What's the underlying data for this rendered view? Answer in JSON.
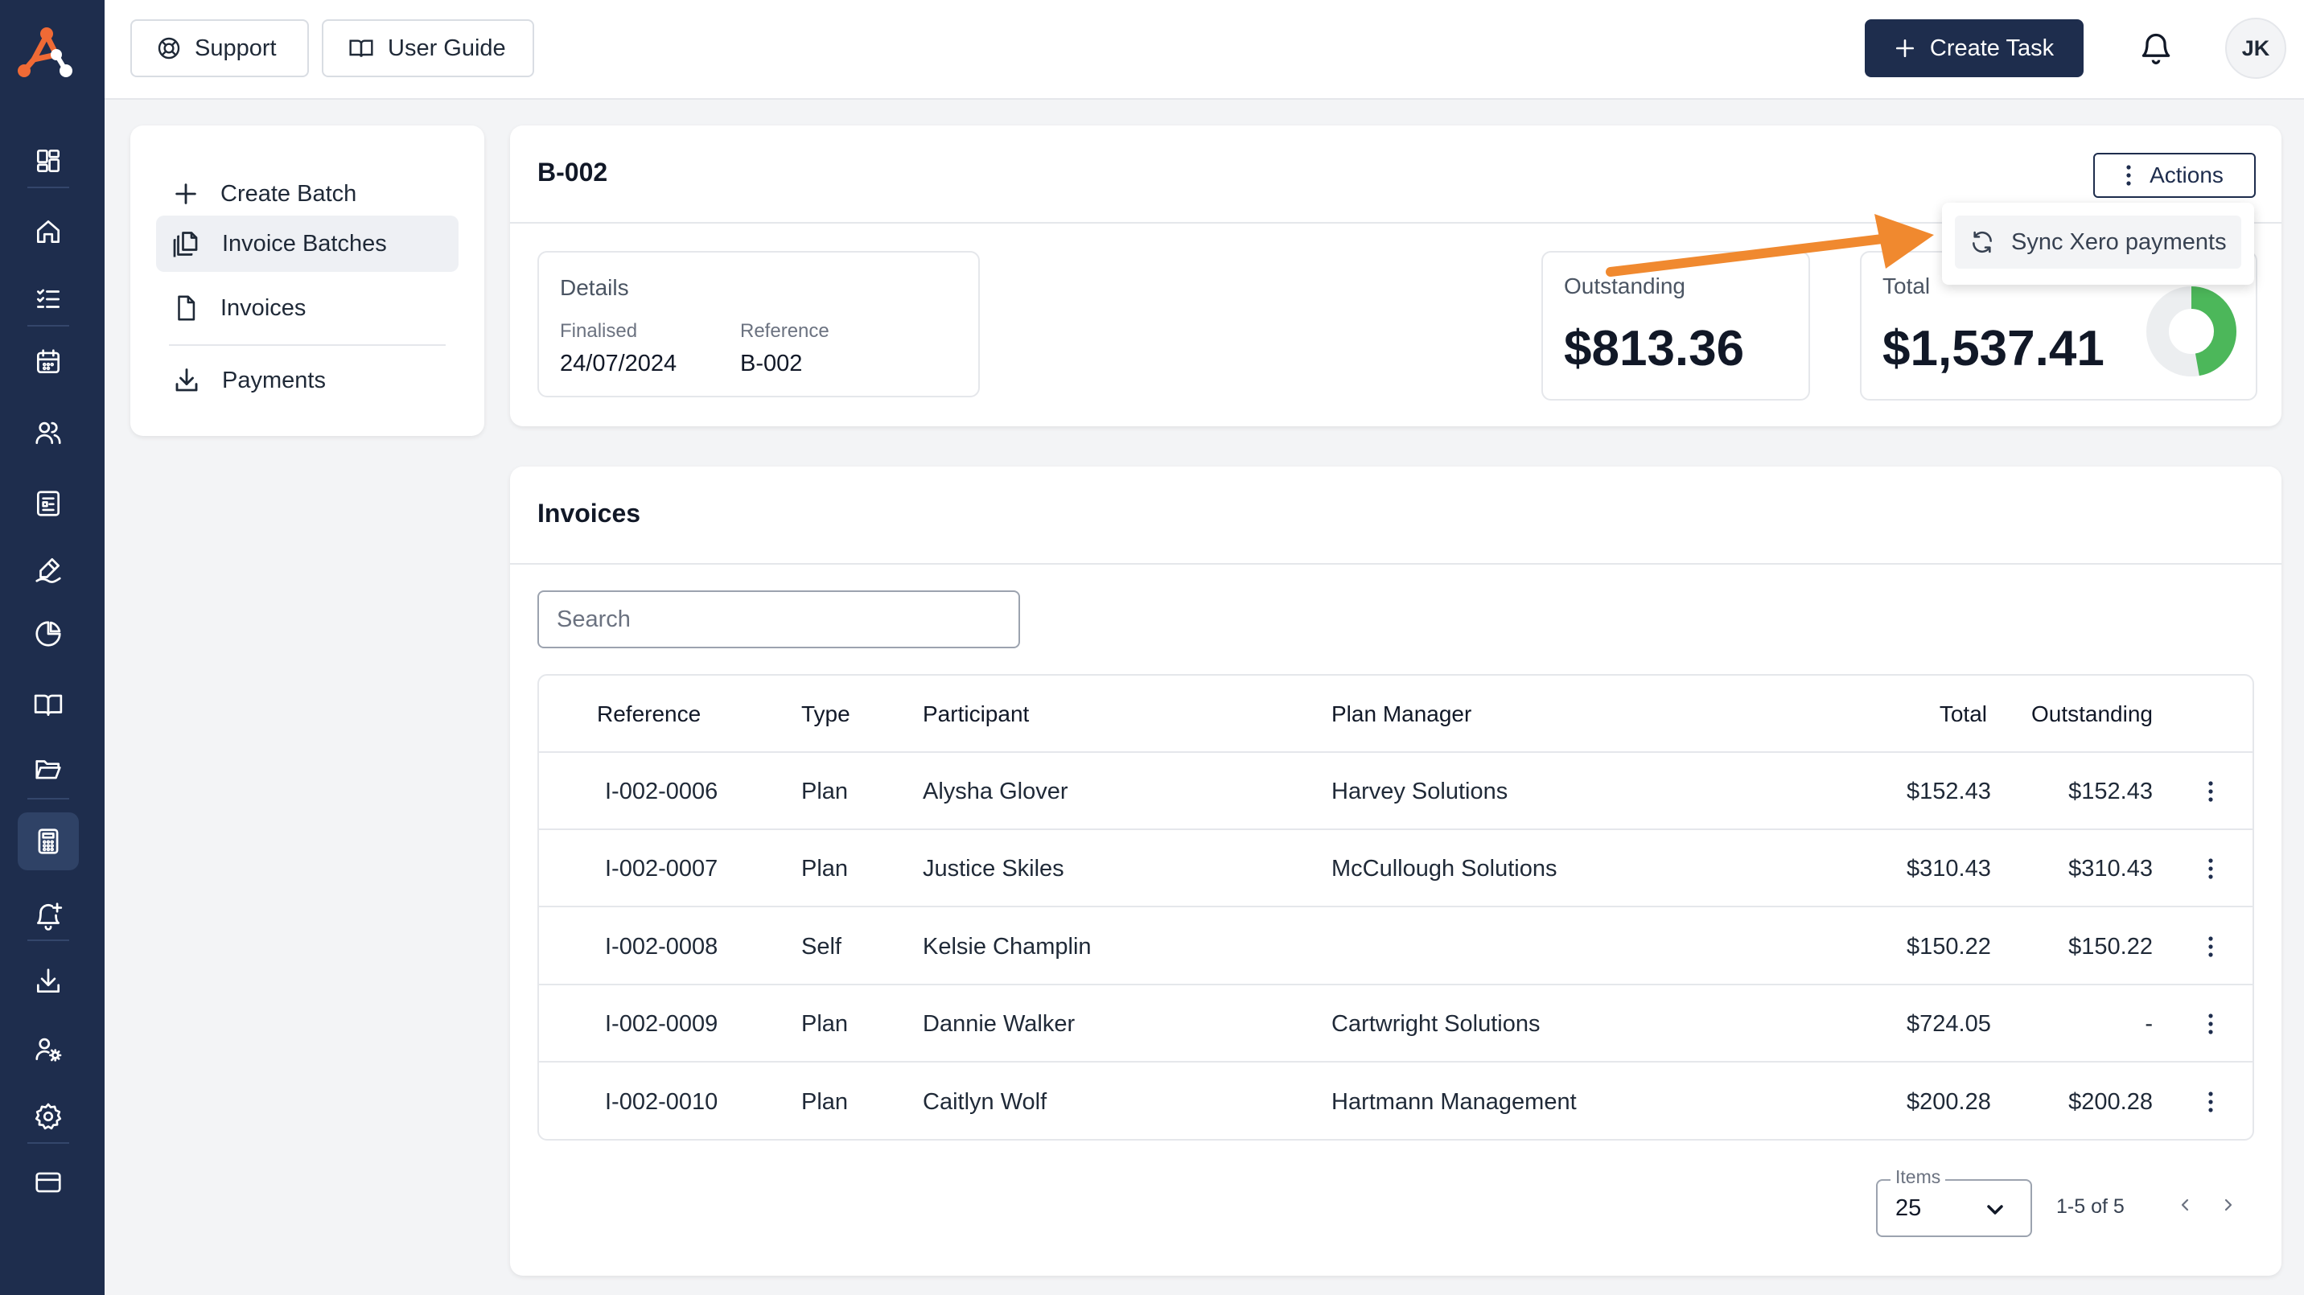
{
  "colors": {
    "navy": "#1e2d4d",
    "brand_orange": "#f06a35",
    "annotation_arrow": "#f0892f",
    "donut_green": "#4cb75a",
    "donut_track": "#eceef0"
  },
  "rail": {
    "logo_icon": "brand-logo",
    "items": [
      {
        "icon": "dashboard-grid-icon"
      },
      {
        "icon": "home-icon"
      },
      {
        "icon": "task-list-icon"
      },
      {
        "icon": "calendar-icon"
      },
      {
        "icon": "users-icon"
      },
      {
        "icon": "forms-icon"
      },
      {
        "icon": "signature-icon"
      },
      {
        "icon": "pie-chart-icon"
      },
      {
        "icon": "book-icon"
      },
      {
        "icon": "folder-icon"
      },
      {
        "icon": "calculator-icon",
        "active": true
      },
      {
        "icon": "bell-plus-icon"
      },
      {
        "icon": "download-icon"
      },
      {
        "icon": "user-settings-icon"
      },
      {
        "icon": "settings-icon"
      },
      {
        "icon": "credit-card-icon"
      }
    ]
  },
  "topbar": {
    "support_label": "Support",
    "guide_label": "User Guide",
    "create_task_label": "Create Task",
    "avatar_initials": "JK"
  },
  "subnav": {
    "items": [
      {
        "label": "Create Batch",
        "icon": "plus-icon"
      },
      {
        "label": "Invoice Batches",
        "icon": "copy-documents-icon",
        "active": true
      },
      {
        "label": "Invoices",
        "icon": "document-icon"
      },
      {
        "label": "Payments",
        "icon": "download-icon"
      }
    ]
  },
  "batch": {
    "title": "B-002",
    "actions_label": "Actions",
    "details": {
      "title": "Details",
      "finalised_label": "Finalised",
      "finalised_value": "24/07/2024",
      "reference_label": "Reference",
      "reference_value": "B-002"
    },
    "outstanding": {
      "label": "Outstanding",
      "value": "$813.36"
    },
    "total": {
      "label": "Total",
      "value": "$1,537.41",
      "paid_fraction": 0.471
    }
  },
  "actions_menu": {
    "items": [
      {
        "label": "Sync Xero payments",
        "icon": "refresh-icon"
      }
    ]
  },
  "invoices": {
    "title": "Invoices",
    "search_placeholder": "Search",
    "columns": [
      "Reference",
      "Type",
      "Participant",
      "Plan Manager",
      "Total",
      "Outstanding"
    ],
    "rows": [
      {
        "reference": "I-002-0006",
        "type": "Plan",
        "participant": "Alysha Glover",
        "plan_manager": "Harvey Solutions",
        "total": "$152.43",
        "outstanding": "$152.43"
      },
      {
        "reference": "I-002-0007",
        "type": "Plan",
        "participant": "Justice Skiles",
        "plan_manager": "McCullough Solutions",
        "total": "$310.43",
        "outstanding": "$310.43"
      },
      {
        "reference": "I-002-0008",
        "type": "Self",
        "participant": "Kelsie Champlin",
        "plan_manager": "",
        "total": "$150.22",
        "outstanding": "$150.22"
      },
      {
        "reference": "I-002-0009",
        "type": "Plan",
        "participant": "Dannie Walker",
        "plan_manager": "Cartwright Solutions",
        "total": "$724.05",
        "outstanding": "-"
      },
      {
        "reference": "I-002-0010",
        "type": "Plan",
        "participant": "Caitlyn Wolf",
        "plan_manager": "Hartmann Management",
        "total": "$200.28",
        "outstanding": "$200.28"
      }
    ],
    "pagination": {
      "items_label": "Items",
      "items_value": "25",
      "range_text": "1-5 of 5"
    }
  }
}
